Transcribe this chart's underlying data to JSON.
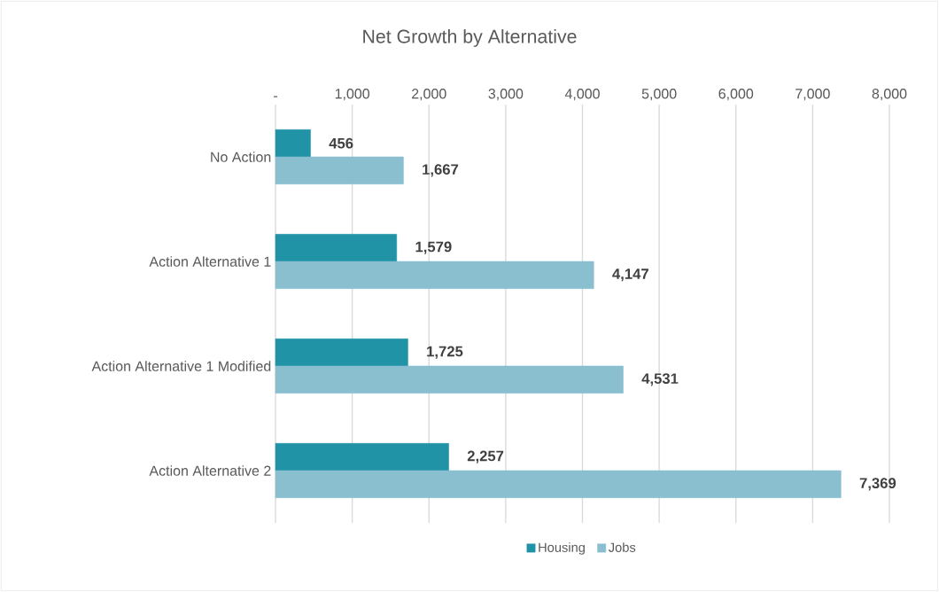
{
  "chart_data": {
    "type": "bar",
    "orientation": "horizontal",
    "title": "Net Growth by Alternative",
    "categories": [
      "No Action",
      "Action Alternative 1",
      "Action Alternative 1 Modified",
      "Action Alternative 2"
    ],
    "series": [
      {
        "name": "Housing",
        "color": "#2193a6",
        "values": [
          456,
          1579,
          1725,
          2257
        ],
        "value_labels": [
          "456",
          "1,579",
          "1,725",
          "2,257"
        ]
      },
      {
        "name": "Jobs",
        "color": "#89bfcf",
        "values": [
          1667,
          4147,
          4531,
          7369
        ],
        "value_labels": [
          "1,667",
          "4,147",
          "4,531",
          "7,369"
        ]
      }
    ],
    "xlim": [
      0,
      8000
    ],
    "xticks": [
      {
        "value": 0,
        "label": "-"
      },
      {
        "value": 1000,
        "label": "1,000"
      },
      {
        "value": 2000,
        "label": "2,000"
      },
      {
        "value": 3000,
        "label": "3,000"
      },
      {
        "value": 4000,
        "label": "4,000"
      },
      {
        "value": 5000,
        "label": "5,000"
      },
      {
        "value": 6000,
        "label": "6,000"
      },
      {
        "value": 7000,
        "label": "7,000"
      },
      {
        "value": 8000,
        "label": "8,000"
      }
    ],
    "grid": "x",
    "legend": "bottom"
  }
}
